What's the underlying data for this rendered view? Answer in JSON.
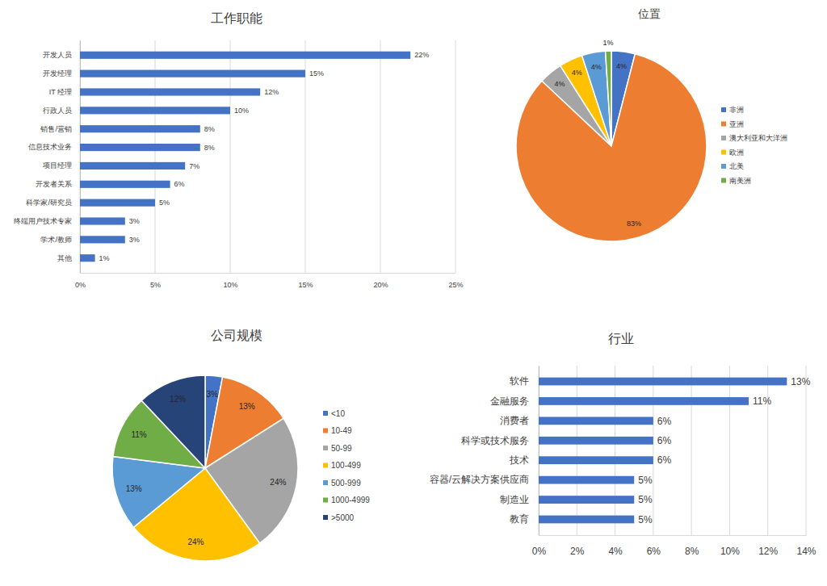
{
  "chart_data": [
    {
      "type": "bar",
      "orientation": "horizontal",
      "title": "工作职能",
      "categories": [
        "开发人员",
        "开发经理",
        "IT 经理",
        "行政人员",
        "销售/营销",
        "信息技术业务",
        "项目经理",
        "开发者关系",
        "科学家/研究员",
        "终端用户技术专家",
        "学术/教师",
        "其他"
      ],
      "values": [
        22,
        15,
        12,
        10,
        8,
        8,
        7,
        6,
        5,
        3,
        3,
        1
      ],
      "value_labels": [
        "22%",
        "15%",
        "12%",
        "10%",
        "8%",
        "8%",
        "7%",
        "6%",
        "5%",
        "3%",
        "3%",
        "1%"
      ],
      "color": "#4472c4",
      "xlim": [
        0,
        25
      ],
      "xticks": [
        {
          "value": 0,
          "label": "0%"
        },
        {
          "value": 5,
          "label": "5%"
        },
        {
          "value": 10,
          "label": "10%"
        },
        {
          "value": 15,
          "label": "15%"
        },
        {
          "value": 20,
          "label": "20%"
        },
        {
          "value": 25,
          "label": "25%"
        }
      ],
      "grid": true,
      "data_labels": true
    },
    {
      "type": "pie",
      "title": "位置",
      "categories": [
        "非洲",
        "亚洲",
        "澳大利亚和大洋洲",
        "欧洲",
        "北美",
        "南美洲"
      ],
      "values": [
        4,
        83,
        4,
        4,
        4,
        1
      ],
      "value_labels": [
        "4%",
        "83%",
        "4%",
        "4%",
        "4%",
        "1%"
      ],
      "colors": [
        "#4472c4",
        "#ed7d31",
        "#a5a5a5",
        "#ffc000",
        "#5b9bd5",
        "#70ad47"
      ],
      "legend": "right",
      "data_labels": true
    },
    {
      "type": "pie",
      "title": "公司规模",
      "categories": [
        "<10",
        "10-49",
        "50-99",
        "100-499",
        "500-999",
        "1000-4999",
        ">5000"
      ],
      "values": [
        3,
        13,
        24,
        24,
        13,
        11,
        12
      ],
      "value_labels": [
        "3%",
        "13%",
        "24%",
        "24%",
        "13%",
        "11%",
        "12%"
      ],
      "colors": [
        "#4472c4",
        "#ed7d31",
        "#a5a5a5",
        "#ffc000",
        "#5b9bd5",
        "#70ad47",
        "#264478"
      ],
      "legend": "right",
      "data_labels": true
    },
    {
      "type": "bar",
      "orientation": "horizontal",
      "title": "行业",
      "categories": [
        "软件",
        "金融服务",
        "消费者",
        "科学或技术服务",
        "技术",
        "容器/云解决方案供应商",
        "制造业",
        "教育"
      ],
      "values": [
        13,
        11,
        6,
        6,
        6,
        5,
        5,
        5
      ],
      "value_labels": [
        "13%",
        "11%",
        "6%",
        "6%",
        "6%",
        "5%",
        "5%",
        "5%"
      ],
      "color": "#4472c4",
      "xlim": [
        0,
        14
      ],
      "xticks": [
        {
          "value": 0,
          "label": "0%"
        },
        {
          "value": 2,
          "label": "2%"
        },
        {
          "value": 4,
          "label": "4%"
        },
        {
          "value": 6,
          "label": "6%"
        },
        {
          "value": 8,
          "label": "8%"
        },
        {
          "value": 10,
          "label": "10%"
        },
        {
          "value": 12,
          "label": "12%"
        },
        {
          "value": 14,
          "label": "14%"
        }
      ],
      "grid": true,
      "data_labels": true
    }
  ]
}
